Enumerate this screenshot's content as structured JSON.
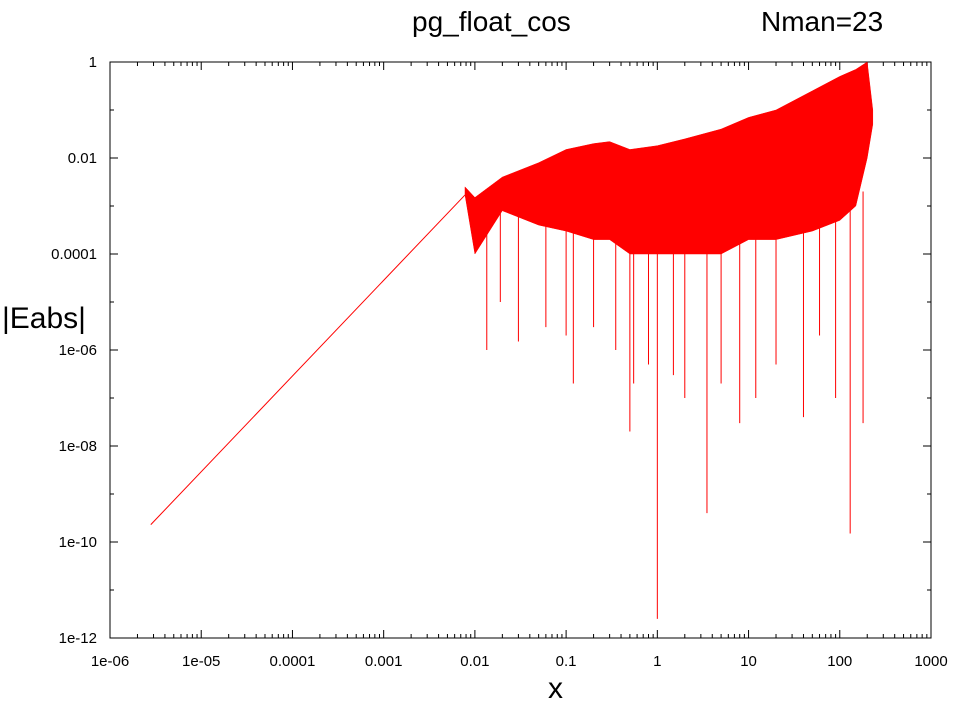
{
  "chart_data": {
    "type": "line",
    "title": "pg_float_cos",
    "subtitle": "Nman=23",
    "xlabel": "x",
    "ylabel": "|Eabs|",
    "x_scale": "log",
    "y_scale": "log",
    "xlim": [
      1e-06,
      1000
    ],
    "ylim": [
      1e-12,
      1
    ],
    "grid": false,
    "legend": "none",
    "x_ticks": [
      "1e-06",
      "1e-05",
      "0.0001",
      "0.001",
      "0.01",
      "0.1",
      "1",
      "10",
      "100",
      "1000"
    ],
    "y_ticks": [
      "1e-12",
      "1e-10",
      "1e-08",
      "1e-06",
      "0.0001",
      "0.01",
      "1"
    ],
    "series": [
      {
        "color": "#ff0000",
        "line_segment": {
          "x": [
            2.8e-06,
            0.0078
          ],
          "y": [
            2.3e-10,
            0.0017
          ]
        },
        "envelope": {
          "x": [
            0.0078,
            0.01,
            0.02,
            0.05,
            0.1,
            0.2,
            0.3,
            0.5,
            1,
            2,
            5,
            10,
            20,
            50,
            100,
            150,
            200,
            230
          ],
          "upper": [
            0.0025,
            0.0015,
            0.004,
            0.008,
            0.015,
            0.02,
            0.022,
            0.015,
            0.018,
            0.025,
            0.04,
            0.07,
            0.1,
            0.25,
            0.5,
            0.7,
            1,
            0.1
          ],
          "lower": [
            0.0017,
            0.0001,
            0.0008,
            0.0004,
            0.0003,
            0.0002,
            0.0002,
            0.0001,
            0.0001,
            0.0001,
            0.0001,
            0.0002,
            0.0002,
            0.0003,
            0.0005,
            0.001,
            0.01,
            0.05
          ]
        },
        "spikes": [
          {
            "x": 0.0135,
            "y": 1e-06
          },
          {
            "x": 0.019,
            "y": 1e-05
          },
          {
            "x": 0.03,
            "y": 1.5e-06
          },
          {
            "x": 0.06,
            "y": 3e-06
          },
          {
            "x": 0.1,
            "y": 2e-06
          },
          {
            "x": 0.12,
            "y": 2e-07
          },
          {
            "x": 0.2,
            "y": 3e-06
          },
          {
            "x": 0.35,
            "y": 1e-06
          },
          {
            "x": 0.5,
            "y": 2e-08
          },
          {
            "x": 0.55,
            "y": 2e-07
          },
          {
            "x": 0.8,
            "y": 5e-07
          },
          {
            "x": 1.0,
            "y": 2.5e-12
          },
          {
            "x": 1.5,
            "y": 3e-07
          },
          {
            "x": 2.0,
            "y": 1e-07
          },
          {
            "x": 3.5,
            "y": 4e-10
          },
          {
            "x": 5.0,
            "y": 2e-07
          },
          {
            "x": 8.0,
            "y": 3e-08
          },
          {
            "x": 12.0,
            "y": 1e-07
          },
          {
            "x": 20.0,
            "y": 5e-07
          },
          {
            "x": 40.0,
            "y": 4e-08
          },
          {
            "x": 60.0,
            "y": 2e-06
          },
          {
            "x": 90.0,
            "y": 1e-07
          },
          {
            "x": 130.0,
            "y": 1.5e-10
          },
          {
            "x": 180.0,
            "y": 3e-08
          }
        ]
      }
    ]
  }
}
